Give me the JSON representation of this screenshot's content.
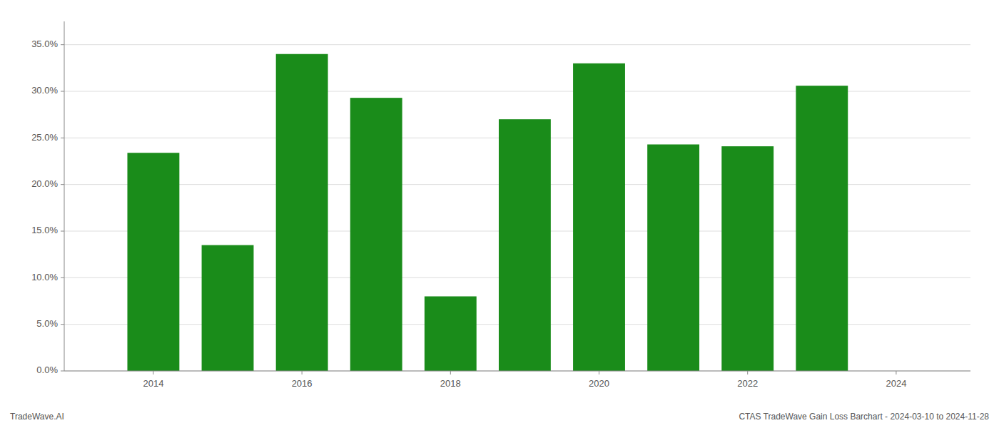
{
  "chart_data": {
    "type": "bar",
    "x": [
      2014,
      2015,
      2016,
      2017,
      2018,
      2019,
      2020,
      2021,
      2022,
      2023
    ],
    "values": [
      0.234,
      0.135,
      0.34,
      0.293,
      0.08,
      0.27,
      0.33,
      0.243,
      0.241,
      0.306
    ],
    "color": "#1a8c1a",
    "xlim": [
      2012.8,
      2025.0
    ],
    "xticks": [
      2014,
      2016,
      2018,
      2020,
      2022,
      2024
    ],
    "ylim": [
      0,
      0.375
    ],
    "yticks": [
      {
        "value": 0.0,
        "label": "0.0%"
      },
      {
        "value": 0.05,
        "label": "5.0%"
      },
      {
        "value": 0.1,
        "label": "10.0%"
      },
      {
        "value": 0.15,
        "label": "15.0%"
      },
      {
        "value": 0.2,
        "label": "20.0%"
      },
      {
        "value": 0.25,
        "label": "25.0%"
      },
      {
        "value": 0.3,
        "label": "30.0%"
      },
      {
        "value": 0.35,
        "label": "35.0%"
      }
    ],
    "grid": true,
    "annotations": [
      "TradeWave.AI",
      "CTAS TradeWave Gain Loss Barchart - 2024-03-10 to 2024-11-28"
    ]
  }
}
